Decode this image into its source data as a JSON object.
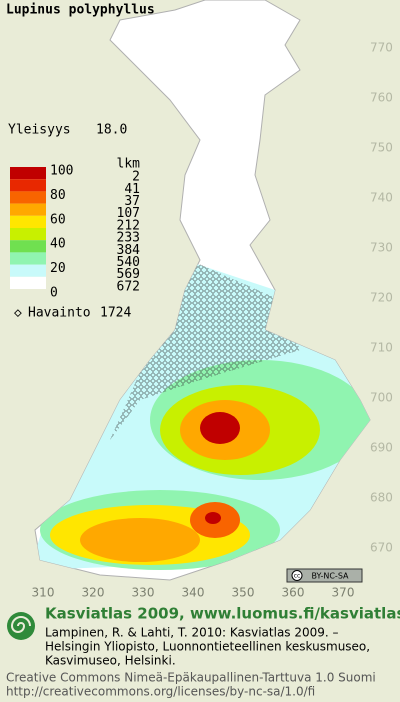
{
  "title": "Lupinus polyphyllus",
  "frequency": {
    "label": "Yleisyys",
    "value": "18.0"
  },
  "legend": {
    "count_header": "lkm",
    "scale_labels": [
      100,
      80,
      60,
      40,
      20,
      0
    ],
    "rows": [
      {
        "color": "#c00000",
        "count": 2
      },
      {
        "color": "#e82800",
        "count": 41
      },
      {
        "color": "#f86400",
        "count": 37
      },
      {
        "color": "#ffa800",
        "count": 107
      },
      {
        "color": "#ffe600",
        "count": 212
      },
      {
        "color": "#c8f000",
        "count": 233
      },
      {
        "color": "#70e050",
        "count": 384
      },
      {
        "color": "#90f4b0",
        "count": 540
      },
      {
        "color": "#c8fafa",
        "count": 569
      },
      {
        "color": "#ffffff",
        "count": 672
      }
    ]
  },
  "observations": {
    "label": "Havainto",
    "value": 1724
  },
  "map": {
    "yticks": [
      770,
      760,
      750,
      740,
      730,
      720,
      710,
      700,
      690,
      680,
      670
    ],
    "xticks": [
      310,
      320,
      330,
      340,
      350,
      360,
      370
    ],
    "license_badge": "BY-NC-SA"
  },
  "footer": {
    "brand": "Kasviatlas 2009, www.luomus.fi/kasviatlas",
    "citation": [
      "Lampinen, R. & Lahti, T. 2010: Kasviatlas 2009. –",
      "Helsingin Yliopisto, Luonnontieteellinen keskusmuseo,",
      "Kasvimuseo, Helsinki."
    ],
    "license": [
      "Creative Commons Nimeä-Epäkaupallinen-Tarttuva 1.0 Suomi",
      "http://creativecommons.org/licenses/by-nc-sa/1.0/fi"
    ]
  }
}
